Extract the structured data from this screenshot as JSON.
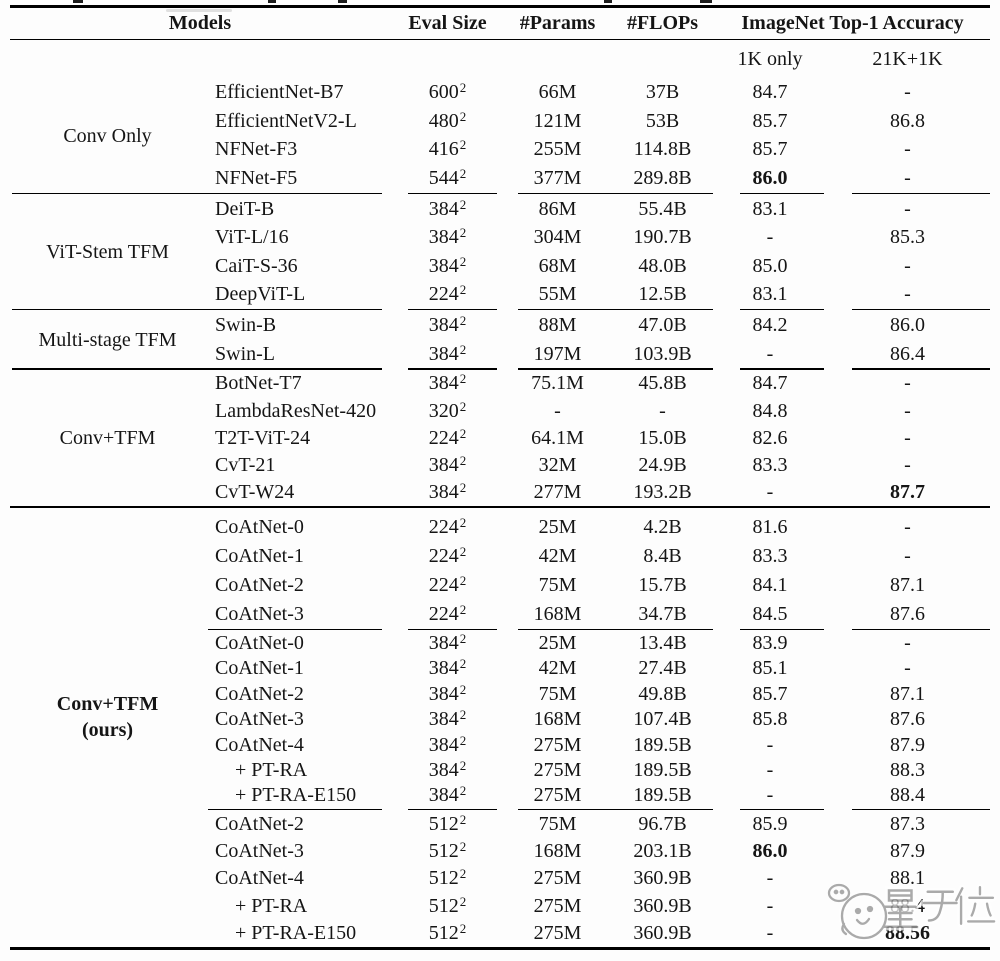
{
  "colors": {
    "text": "#151515",
    "rule": "#000000",
    "background": "#fdfdfd",
    "watermark": "#989898"
  },
  "table": {
    "headers": {
      "models": "Models",
      "eval": "Eval Size",
      "params": "#Params",
      "flops": "#FLOPs",
      "imagenet": "ImageNet Top-1 Accuracy",
      "sub_1k": "1K only",
      "sub_21k": "21K+1K"
    },
    "groups": [
      {
        "label": "Conv Only",
        "blocks": [
          {
            "rows": [
              {
                "model": "EfficientNet-B7",
                "eval_base": "600",
                "eval_sup": "2",
                "params": "66M",
                "flops": "37B",
                "top1_1k": "84.7",
                "top1_21k": "-"
              },
              {
                "model": "EfficientNetV2-L",
                "eval_base": "480",
                "eval_sup": "2",
                "params": "121M",
                "flops": "53B",
                "top1_1k": "85.7",
                "top1_21k": "86.8"
              },
              {
                "model": "NFNet-F3",
                "eval_base": "416",
                "eval_sup": "2",
                "params": "255M",
                "flops": "114.8B",
                "top1_1k": "85.7",
                "top1_21k": "-"
              },
              {
                "model": "NFNet-F5",
                "eval_base": "544",
                "eval_sup": "2",
                "params": "377M",
                "flops": "289.8B",
                "top1_1k": "86.0",
                "top1_21k": "-",
                "bold_1k": true
              }
            ]
          }
        ]
      },
      {
        "label": "ViT-Stem TFM",
        "blocks": [
          {
            "rows": [
              {
                "model": "DeiT-B",
                "eval_base": "384",
                "eval_sup": "2",
                "params": "86M",
                "flops": "55.4B",
                "top1_1k": "83.1",
                "top1_21k": "-"
              },
              {
                "model": "ViT-L/16",
                "eval_base": "384",
                "eval_sup": "2",
                "params": "304M",
                "flops": "190.7B",
                "top1_1k": "-",
                "top1_21k": "85.3"
              },
              {
                "model": "CaiT-S-36",
                "eval_base": "384",
                "eval_sup": "2",
                "params": "68M",
                "flops": "48.0B",
                "top1_1k": "85.0",
                "top1_21k": "-"
              },
              {
                "model": "DeepViT-L",
                "eval_base": "224",
                "eval_sup": "2",
                "params": "55M",
                "flops": "12.5B",
                "top1_1k": "83.1",
                "top1_21k": "-"
              }
            ]
          }
        ]
      },
      {
        "label": "Multi-stage TFM",
        "blocks": [
          {
            "rows": [
              {
                "model": "Swin-B",
                "eval_base": "384",
                "eval_sup": "2",
                "params": "88M",
                "flops": "47.0B",
                "top1_1k": "84.2",
                "top1_21k": "86.0"
              },
              {
                "model": "Swin-L",
                "eval_base": "384",
                "eval_sup": "2",
                "params": "197M",
                "flops": "103.9B",
                "top1_1k": "-",
                "top1_21k": "86.4"
              }
            ]
          }
        ]
      },
      {
        "label": "Conv+TFM",
        "blocks": [
          {
            "rows": [
              {
                "model": "BotNet-T7",
                "eval_base": "384",
                "eval_sup": "2",
                "params": "75.1M",
                "flops": "45.8B",
                "top1_1k": "84.7",
                "top1_21k": "-"
              },
              {
                "model": "LambdaResNet-420",
                "eval_base": "320",
                "eval_sup": "2",
                "params": "-",
                "flops": "-",
                "top1_1k": "84.8",
                "top1_21k": "-"
              },
              {
                "model": "T2T-ViT-24",
                "eval_base": "224",
                "eval_sup": "2",
                "params": "64.1M",
                "flops": "15.0B",
                "top1_1k": "82.6",
                "top1_21k": "-"
              },
              {
                "model": "CvT-21",
                "eval_base": "384",
                "eval_sup": "2",
                "params": "32M",
                "flops": "24.9B",
                "top1_1k": "83.3",
                "top1_21k": "-"
              },
              {
                "model": "CvT-W24",
                "eval_base": "384",
                "eval_sup": "2",
                "params": "277M",
                "flops": "193.2B",
                "top1_1k": "-",
                "top1_21k": "87.7",
                "bold_21k": true
              }
            ]
          }
        ]
      },
      {
        "label": "Conv+TFM",
        "label2": "(ours)",
        "bold": true,
        "full_rule_before": true,
        "blocks": [
          {
            "rows": [
              {
                "model": "CoAtNet-0",
                "eval_base": "224",
                "eval_sup": "2",
                "params": "25M",
                "flops": "4.2B",
                "top1_1k": "81.6",
                "top1_21k": "-"
              },
              {
                "model": "CoAtNet-1",
                "eval_base": "224",
                "eval_sup": "2",
                "params": "42M",
                "flops": "8.4B",
                "top1_1k": "83.3",
                "top1_21k": "-"
              },
              {
                "model": "CoAtNet-2",
                "eval_base": "224",
                "eval_sup": "2",
                "params": "75M",
                "flops": "15.7B",
                "top1_1k": "84.1",
                "top1_21k": "87.1"
              },
              {
                "model": "CoAtNet-3",
                "eval_base": "224",
                "eval_sup": "2",
                "params": "168M",
                "flops": "34.7B",
                "top1_1k": "84.5",
                "top1_21k": "87.6"
              }
            ]
          },
          {
            "rows": [
              {
                "model": "CoAtNet-0",
                "eval_base": "384",
                "eval_sup": "2",
                "params": "25M",
                "flops": "13.4B",
                "top1_1k": "83.9",
                "top1_21k": "-"
              },
              {
                "model": "CoAtNet-1",
                "eval_base": "384",
                "eval_sup": "2",
                "params": "42M",
                "flops": "27.4B",
                "top1_1k": "85.1",
                "top1_21k": "-"
              },
              {
                "model": "CoAtNet-2",
                "eval_base": "384",
                "eval_sup": "2",
                "params": "75M",
                "flops": "49.8B",
                "top1_1k": "85.7",
                "top1_21k": "87.1"
              },
              {
                "model": "CoAtNet-3",
                "eval_base": "384",
                "eval_sup": "2",
                "params": "168M",
                "flops": "107.4B",
                "top1_1k": "85.8",
                "top1_21k": "87.6"
              },
              {
                "model": "CoAtNet-4",
                "eval_base": "384",
                "eval_sup": "2",
                "params": "275M",
                "flops": "189.5B",
                "top1_1k": "-",
                "top1_21k": "87.9"
              },
              {
                "model": "+ PT-RA",
                "eval_base": "384",
                "eval_sup": "2",
                "params": "275M",
                "flops": "189.5B",
                "top1_1k": "-",
                "top1_21k": "88.3",
                "indent": true
              },
              {
                "model": "+ PT-RA-E150",
                "eval_base": "384",
                "eval_sup": "2",
                "params": "275M",
                "flops": "189.5B",
                "top1_1k": "-",
                "top1_21k": "88.4",
                "indent": true
              }
            ]
          },
          {
            "rows": [
              {
                "model": "CoAtNet-2",
                "eval_base": "512",
                "eval_sup": "2",
                "params": "75M",
                "flops": "96.7B",
                "top1_1k": "85.9",
                "top1_21k": "87.3"
              },
              {
                "model": "CoAtNet-3",
                "eval_base": "512",
                "eval_sup": "2",
                "params": "168M",
                "flops": "203.1B",
                "top1_1k": "86.0",
                "top1_21k": "87.9",
                "bold_1k": true
              },
              {
                "model": "CoAtNet-4",
                "eval_base": "512",
                "eval_sup": "2",
                "params": "275M",
                "flops": "360.9B",
                "top1_1k": "-",
                "top1_21k": "88.1"
              },
              {
                "model": "+ PT-RA",
                "eval_base": "512",
                "eval_sup": "2",
                "params": "275M",
                "flops": "360.9B",
                "top1_1k": "-",
                "top1_21k": "88.4",
                "indent": true
              },
              {
                "model": "+ PT-RA-E150",
                "eval_base": "512",
                "eval_sup": "2",
                "params": "275M",
                "flops": "360.9B",
                "top1_1k": "-",
                "top1_21k": "88.56",
                "indent": true,
                "bold_21k": true
              }
            ]
          }
        ]
      }
    ]
  },
  "watermark": {
    "text": "量子位"
  }
}
